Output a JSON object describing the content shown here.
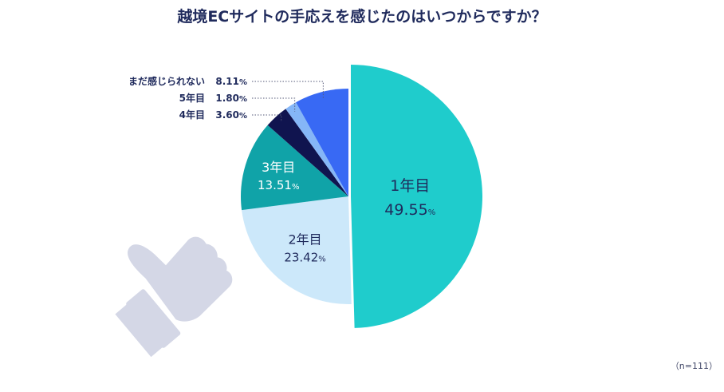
{
  "chart_data": {
    "type": "pie",
    "title": "越境ECサイトの手応えを感じたのはいつからですか？",
    "note": "（n=111）",
    "percent_sign": "%",
    "slices": [
      {
        "label": "1年目",
        "value": 49.55,
        "value_text": "49.55",
        "color": "#1fcccc",
        "text_color": "#1f2a5c"
      },
      {
        "label": "2年目",
        "value": 23.42,
        "value_text": "23.42",
        "color": "#cce8fa",
        "text_color": "#1f2a5c"
      },
      {
        "label": "3年目",
        "value": 13.51,
        "value_text": "13.51",
        "color": "#10a3a8",
        "text_color": "#ffffff"
      },
      {
        "label": "4年目",
        "value": 3.6,
        "value_text": "3.60",
        "color": "#10144f",
        "text_color": "#1f2a5c"
      },
      {
        "label": "5年目",
        "value": 1.8,
        "value_text": "1.80",
        "color": "#85b6f7",
        "text_color": "#1f2a5c"
      },
      {
        "label": "まだ感じられない",
        "value": 8.11,
        "value_text": "8.11",
        "color": "#3869f4",
        "text_color": "#1f2a5c"
      }
    ]
  },
  "decoration": {
    "icon": "thumbs-up-icon",
    "color": "#d4d7e6"
  }
}
